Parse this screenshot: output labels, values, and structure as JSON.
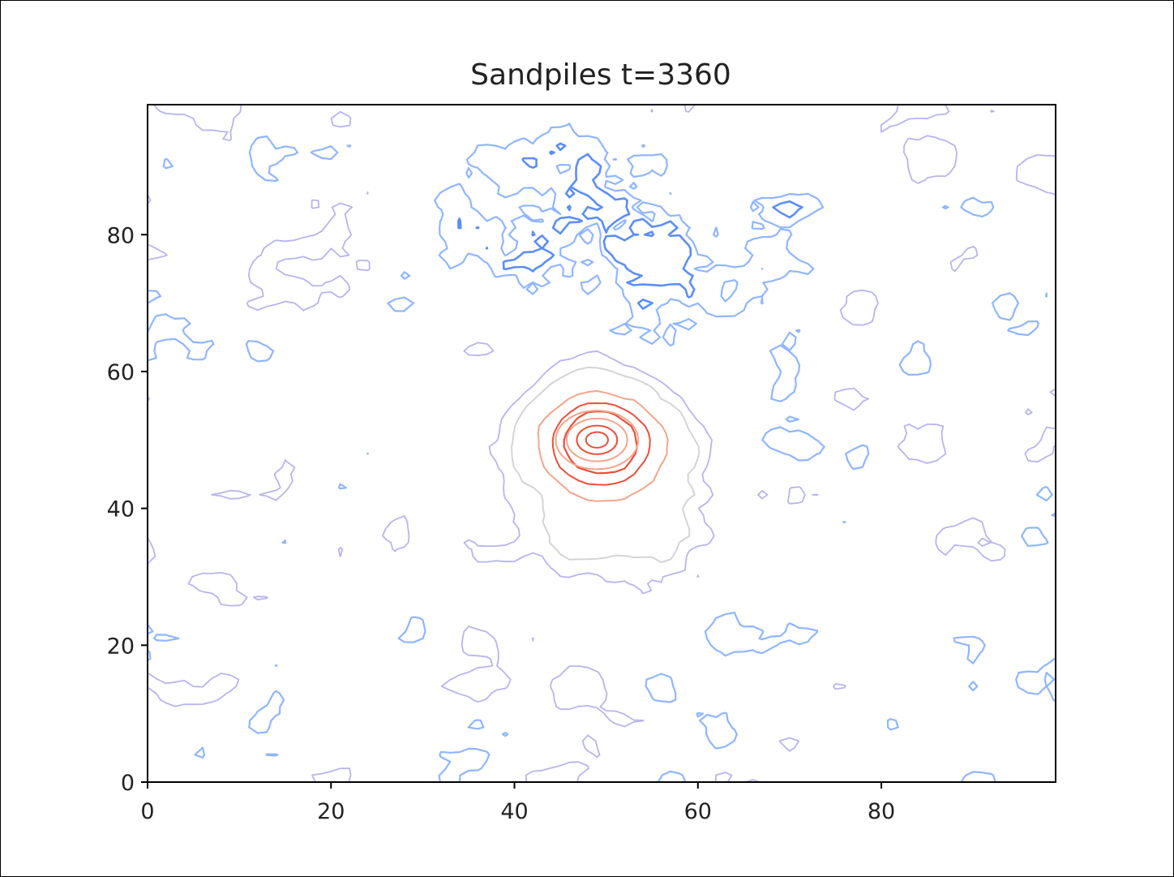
{
  "chart_data": {
    "type": "contour",
    "title": "Sandpiles t=3360",
    "xlabel": "",
    "ylabel": "",
    "xlim": [
      0,
      99
    ],
    "ylim": [
      0,
      99
    ],
    "x_ticks": [
      0,
      20,
      40,
      60,
      80
    ],
    "y_ticks": [
      0,
      20,
      40,
      60,
      80
    ],
    "grid": false,
    "colormap": "coolwarm",
    "colors": {
      "low_blue": "#8fb6ff",
      "mid_blue": "#5b8ef7",
      "lavender": "#b8b4f0",
      "grey": "#d4d4d4",
      "salmon": "#f4a58a",
      "red": "#e8503c"
    },
    "features": [
      {
        "name": "peak",
        "level": "high",
        "center": [
          49,
          50
        ],
        "rings": [
          1.2,
          2.2,
          3.3,
          4.5
        ]
      },
      {
        "name": "mid-plateau",
        "level": "mid",
        "center": [
          52,
          42
        ]
      },
      {
        "name": "dense-blue-cluster",
        "level": "low",
        "center": [
          50,
          80
        ]
      },
      {
        "name": "background-contours",
        "level": "lowest"
      }
    ]
  }
}
